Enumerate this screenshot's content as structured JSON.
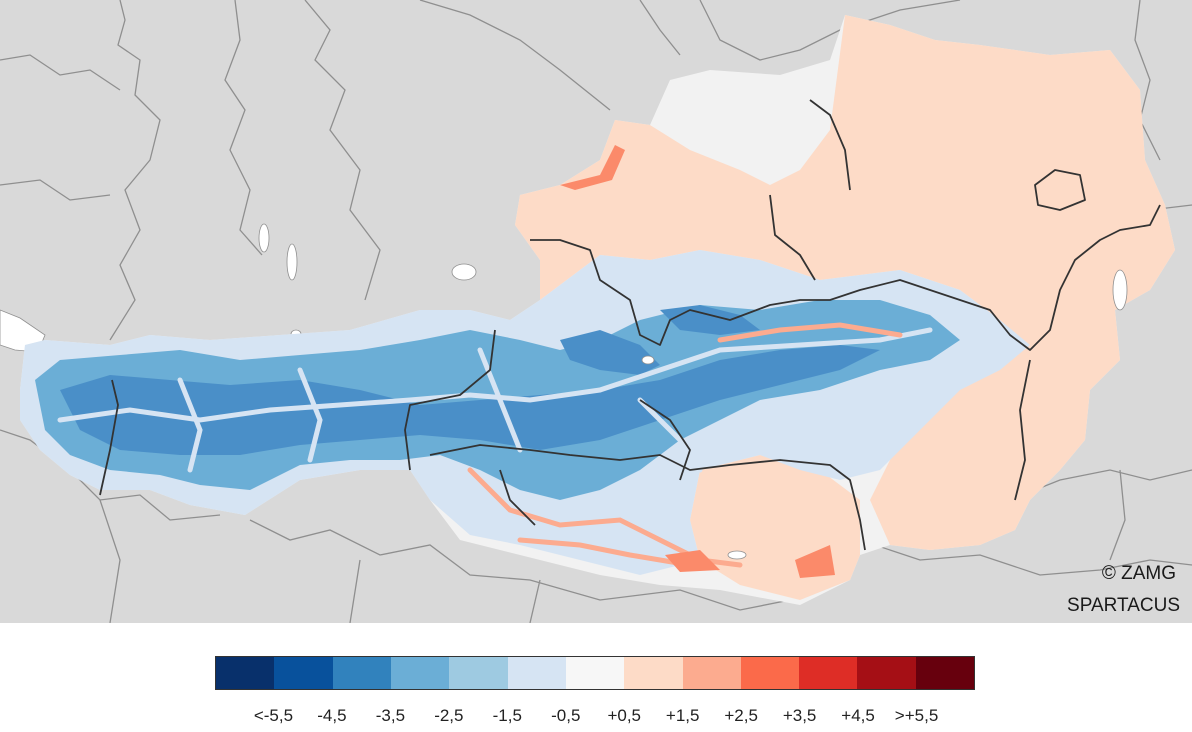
{
  "credits": {
    "line1": "© ZAMG",
    "line2": "SPARTACUS"
  },
  "legend": {
    "colors": [
      "#08306b",
      "#08519c",
      "#3182bd",
      "#6baed6",
      "#9ecae1",
      "#d6e4f3",
      "#f7f7f7",
      "#fddbc7",
      "#fcab8f",
      "#fb6a4a",
      "#de2d26",
      "#a50f15",
      "#67000d"
    ],
    "labels": [
      "<-5,5",
      "-4,5",
      "-3,5",
      "-2,5",
      "-1,5",
      "-0,5",
      "+0,5",
      "+1,5",
      "+2,5",
      "+3,5",
      "+4,5",
      ">+5,5"
    ]
  },
  "map_colors": {
    "background": "#d9d9d9",
    "lake": "#ffffff",
    "border_outer": "#8a8a8a",
    "border_state": "#333333",
    "cold_deep": "#4a8fc8",
    "cold_mid": "#6baed6",
    "cold_light": "#9ecae1",
    "cool": "#d6e4f3",
    "neutral": "#f2f2f2",
    "warm": "#fddbc7",
    "warmer": "#fcab8f"
  }
}
